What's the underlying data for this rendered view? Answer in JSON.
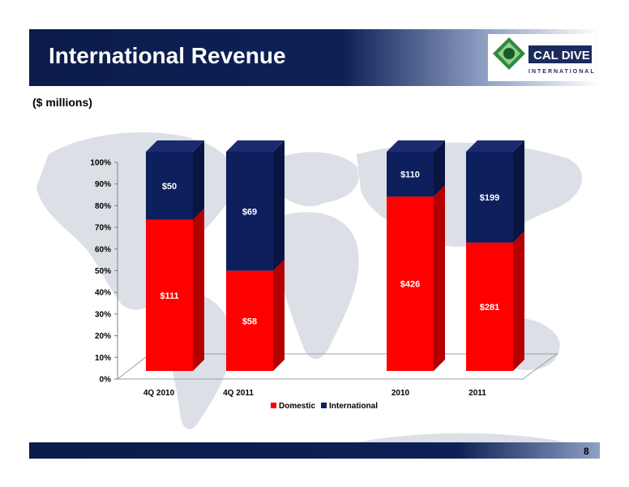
{
  "header": {
    "title": "International Revenue"
  },
  "logo": {
    "line1": "CAL DIVE",
    "line2": "INTERNATIONAL"
  },
  "subtitle": "($ millions)",
  "page_number": "8",
  "colors": {
    "domestic": "#ff0000",
    "international": "#0d1f5c",
    "header": "#0b1c4a"
  },
  "chart_data": {
    "type": "bar",
    "stacked": "percent",
    "categories": [
      "4Q 2010",
      "4Q 2011",
      "2010",
      "2011"
    ],
    "series": [
      {
        "name": "Domestic",
        "values": [
          111,
          58,
          426,
          281
        ],
        "labels": [
          "$111",
          "$58",
          "$426",
          "$281"
        ]
      },
      {
        "name": "International",
        "values": [
          50,
          69,
          110,
          199
        ],
        "labels": [
          "$50",
          "$69",
          "$110",
          "$199"
        ]
      }
    ],
    "ylim": [
      0,
      100
    ],
    "yticks": [
      "0%",
      "10%",
      "20%",
      "30%",
      "40%",
      "50%",
      "60%",
      "70%",
      "80%",
      "90%",
      "100%"
    ],
    "legend": "bottom",
    "grid": false
  }
}
